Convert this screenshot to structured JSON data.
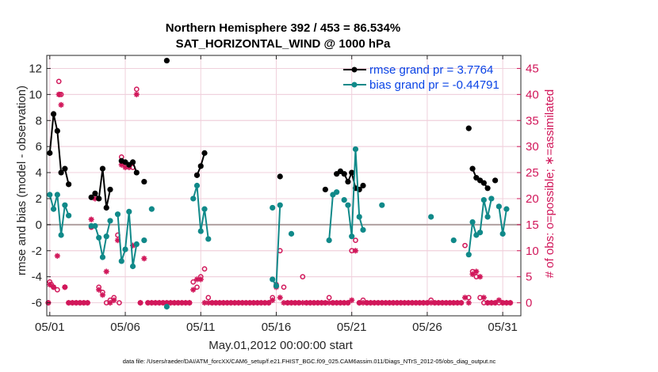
{
  "chart_data": {
    "type": "line",
    "title": "Northern Hemisphere 392 / 453 = 86.534%",
    "subtitle": "SAT_HORIZONTAL_WIND @ 1000 hPa",
    "xlabel": "May.01,2012 00:00:00 start",
    "ylabel": "rmse and bias (model - observation)",
    "y2label": "# of obs: o=possible; ∗=assimilated",
    "footnote": "data file: /Users/raeder/DAI/ATM_forcXX/CAM6_setup/f.e21.FHIST_BGC.f09_025.CAM6assim.011/Diags_NTrS_2012-05/obs_diag_output.nc",
    "xlim": [
      0.8,
      32.2
    ],
    "ylim": [
      -7,
      13
    ],
    "y2lim": [
      -2.5,
      47.5
    ],
    "x_ticks": [
      1,
      6,
      11,
      16,
      21,
      26,
      31
    ],
    "x_tick_labels": [
      "05/01",
      "05/06",
      "05/11",
      "05/16",
      "05/21",
      "05/26",
      "05/31"
    ],
    "y_ticks": [
      -6,
      -4,
      -2,
      0,
      2,
      4,
      6,
      8,
      10,
      12
    ],
    "y_tick_labels": [
      "-6",
      "-4",
      "-2",
      "0",
      "2",
      "4",
      "6",
      "8",
      "10",
      "12"
    ],
    "y2_ticks": [
      0,
      5,
      10,
      15,
      20,
      25,
      30,
      35,
      40,
      45
    ],
    "y2_tick_labels": [
      "0",
      "5",
      "10",
      "15",
      "20",
      "25",
      "30",
      "35",
      "40",
      "45"
    ],
    "grid": true,
    "legend_position": "top-right",
    "colors": {
      "rmse": "#000000",
      "bias": "#108989",
      "obs": "#d1175a",
      "zero_line": "#b0a0a0",
      "grid": "#f0d0dc"
    },
    "series": [
      {
        "name": "rmse grand pr = 3.7764",
        "marker": "filled-circle",
        "segments": [
          [
            [
              1.0,
              5.5
            ],
            [
              1.25,
              8.5
            ],
            [
              1.5,
              7.2
            ],
            [
              1.75,
              4.0
            ],
            [
              2.0,
              4.3
            ],
            [
              2.25,
              3.1
            ]
          ],
          [
            [
              3.75,
              2.1
            ],
            [
              4.0,
              2.4
            ],
            [
              4.25,
              2.0
            ],
            [
              4.5,
              4.3
            ],
            [
              4.75,
              1.3
            ],
            [
              5.0,
              2.7
            ]
          ],
          [
            [
              5.75,
              4.9
            ],
            [
              6.0,
              4.8
            ],
            [
              6.25,
              4.6
            ],
            [
              6.5,
              4.8
            ],
            [
              6.75,
              4.0
            ]
          ],
          [
            [
              7.25,
              3.3
            ]
          ],
          [
            [
              8.75,
              12.6
            ]
          ],
          [
            [
              10.75,
              3.8
            ],
            [
              11.0,
              4.5
            ],
            [
              11.25,
              5.5
            ]
          ],
          [
            [
              16.25,
              3.7
            ]
          ],
          [
            [
              20.0,
              3.9
            ],
            [
              20.25,
              4.1
            ],
            [
              20.5,
              3.9
            ],
            [
              20.75,
              3.3
            ],
            [
              21.0,
              4.0
            ],
            [
              21.25,
              2.8
            ],
            [
              21.5,
              2.7
            ],
            [
              21.75,
              3.0
            ]
          ],
          [
            [
              19.25,
              2.7
            ]
          ],
          [
            [
              28.75,
              7.4
            ]
          ],
          [
            [
              29.0,
              4.3
            ],
            [
              29.25,
              3.6
            ],
            [
              29.5,
              3.4
            ],
            [
              29.75,
              3.2
            ],
            [
              30.0,
              2.8
            ]
          ],
          [
            [
              30.5,
              3.4
            ]
          ]
        ]
      },
      {
        "name": "bias grand pr = -0.44791",
        "marker": "filled-circle",
        "segments": [
          [
            [
              1.0,
              2.3
            ],
            [
              1.25,
              1.2
            ],
            [
              1.5,
              2.3
            ],
            [
              1.75,
              -0.8
            ],
            [
              2.0,
              1.5
            ],
            [
              2.25,
              0.7
            ]
          ],
          [
            [
              3.75,
              -0.1
            ],
            [
              4.0,
              -0.1
            ],
            [
              4.25,
              -1.0
            ],
            [
              4.5,
              -2.5
            ],
            [
              4.75,
              -0.9
            ],
            [
              5.0,
              0.3
            ]
          ],
          [
            [
              5.5,
              0.8
            ],
            [
              5.75,
              -2.8
            ],
            [
              6.0,
              -1.9
            ],
            [
              6.25,
              1.0
            ],
            [
              6.5,
              -3.2
            ],
            [
              6.75,
              -1.5
            ]
          ],
          [
            [
              7.25,
              -1.2
            ]
          ],
          [
            [
              7.75,
              1.2
            ]
          ],
          [
            [
              8.75,
              -6.3
            ]
          ],
          [
            [
              10.5,
              2.0
            ],
            [
              10.75,
              3.0
            ],
            [
              11.0,
              -0.5
            ],
            [
              11.25,
              1.2
            ],
            [
              11.5,
              -1.1
            ]
          ],
          [
            [
              15.75,
              -4.2
            ],
            [
              16.0,
              -4.7
            ],
            [
              16.25,
              1.5
            ]
          ],
          [
            [
              15.75,
              1.3
            ]
          ],
          [
            [
              17.0,
              -0.7
            ]
          ],
          [
            [
              19.5,
              -1.2
            ],
            [
              19.75,
              2.3
            ],
            [
              20.0,
              2.5
            ]
          ],
          [
            [
              20.75,
              1.5
            ],
            [
              21.0,
              -0.9
            ],
            [
              21.25,
              5.8
            ],
            [
              21.5,
              0.6
            ],
            [
              21.75,
              -0.4
            ]
          ],
          [
            [
              20.5,
              1.9
            ]
          ],
          [
            [
              23.0,
              1.5
            ]
          ],
          [
            [
              26.25,
              0.6
            ]
          ],
          [
            [
              27.75,
              -1.2
            ]
          ],
          [
            [
              28.75,
              -2.3
            ],
            [
              29.0,
              0.2
            ],
            [
              29.25,
              -0.8
            ],
            [
              29.5,
              -0.6
            ],
            [
              29.75,
              1.9
            ],
            [
              30.0,
              0.6
            ],
            [
              30.25,
              2.0
            ]
          ],
          [
            [
              30.75,
              1.4
            ],
            [
              31.0,
              -0.7
            ],
            [
              31.25,
              1.2
            ]
          ]
        ]
      }
    ],
    "obs_possible": [
      [
        0.9,
        0
      ],
      [
        1.0,
        4.0
      ],
      [
        1.1,
        3.5
      ],
      [
        1.25,
        3.0
      ],
      [
        1.5,
        2.5
      ],
      [
        1.6,
        42.5
      ],
      [
        1.65,
        40.0
      ],
      [
        1.75,
        40.0
      ],
      [
        2.0,
        3.0
      ],
      [
        2.25,
        0
      ],
      [
        2.5,
        0
      ],
      [
        2.75,
        0
      ],
      [
        3.0,
        0
      ],
      [
        3.25,
        0
      ],
      [
        3.5,
        0
      ],
      [
        3.75,
        14.5
      ],
      [
        4.0,
        21.0
      ],
      [
        4.25,
        3.0
      ],
      [
        4.5,
        2.0
      ],
      [
        4.75,
        0
      ],
      [
        5.0,
        0.5
      ],
      [
        5.25,
        1.0
      ],
      [
        5.5,
        13.0
      ],
      [
        5.6,
        0
      ],
      [
        5.75,
        28.0
      ],
      [
        6.0,
        26.5
      ],
      [
        6.25,
        26.5
      ],
      [
        6.5,
        26.0
      ],
      [
        6.75,
        41.0
      ],
      [
        7.0,
        0
      ],
      [
        7.25,
        12.0
      ],
      [
        7.5,
        0
      ],
      [
        7.75,
        0
      ],
      [
        8.0,
        0
      ],
      [
        8.25,
        0
      ],
      [
        8.5,
        0
      ],
      [
        8.75,
        0
      ],
      [
        9.0,
        0
      ],
      [
        9.25,
        0
      ],
      [
        9.5,
        0
      ],
      [
        9.75,
        0
      ],
      [
        10.0,
        0
      ],
      [
        10.25,
        0
      ],
      [
        10.5,
        4.0
      ],
      [
        10.75,
        3.0
      ],
      [
        11.0,
        5.0
      ],
      [
        11.25,
        6.5
      ],
      [
        11.5,
        1.0
      ],
      [
        11.75,
        0
      ],
      [
        12.0,
        0
      ],
      [
        12.25,
        0
      ],
      [
        12.5,
        0
      ],
      [
        12.75,
        0
      ],
      [
        13.0,
        0
      ],
      [
        13.25,
        0
      ],
      [
        13.5,
        0
      ],
      [
        13.75,
        0
      ],
      [
        14.0,
        0
      ],
      [
        14.25,
        0
      ],
      [
        14.5,
        0
      ],
      [
        14.75,
        0
      ],
      [
        15.0,
        0
      ],
      [
        15.25,
        0
      ],
      [
        15.5,
        0
      ],
      [
        15.75,
        1.0
      ],
      [
        16.0,
        3.5
      ],
      [
        16.25,
        10.0
      ],
      [
        16.5,
        3.0
      ],
      [
        16.75,
        0
      ],
      [
        17.0,
        0
      ],
      [
        17.25,
        0
      ],
      [
        17.5,
        0
      ],
      [
        17.75,
        5.0
      ],
      [
        18.0,
        0
      ],
      [
        18.25,
        0
      ],
      [
        18.5,
        0
      ],
      [
        18.75,
        0
      ],
      [
        19.0,
        0
      ],
      [
        19.25,
        0
      ],
      [
        19.5,
        1.0
      ],
      [
        19.75,
        0
      ],
      [
        20.0,
        0
      ],
      [
        20.25,
        0
      ],
      [
        20.5,
        0
      ],
      [
        20.75,
        0
      ],
      [
        21.0,
        10.0
      ],
      [
        21.25,
        12.0
      ],
      [
        21.5,
        0
      ],
      [
        21.75,
        0.5
      ],
      [
        22.0,
        0
      ],
      [
        22.25,
        0
      ],
      [
        22.5,
        0
      ],
      [
        22.75,
        0
      ],
      [
        23.0,
        0
      ],
      [
        23.25,
        0
      ],
      [
        23.5,
        0
      ],
      [
        23.75,
        0
      ],
      [
        24.0,
        0
      ],
      [
        24.25,
        0
      ],
      [
        24.5,
        0
      ],
      [
        24.75,
        0
      ],
      [
        25.0,
        0
      ],
      [
        25.25,
        0
      ],
      [
        25.5,
        0
      ],
      [
        25.75,
        0
      ],
      [
        26.0,
        0
      ],
      [
        26.25,
        0.5
      ],
      [
        26.5,
        0
      ],
      [
        26.75,
        0
      ],
      [
        27.0,
        0
      ],
      [
        27.25,
        0
      ],
      [
        27.5,
        0
      ],
      [
        27.75,
        0
      ],
      [
        28.0,
        0
      ],
      [
        28.25,
        0
      ],
      [
        28.5,
        11.0
      ],
      [
        28.75,
        1.0
      ],
      [
        29.0,
        6.0
      ],
      [
        29.25,
        5.0
      ],
      [
        29.5,
        1.0
      ],
      [
        29.75,
        0
      ],
      [
        30.0,
        0
      ],
      [
        30.25,
        0
      ],
      [
        30.5,
        0
      ],
      [
        30.75,
        0
      ],
      [
        31.0,
        0
      ],
      [
        31.25,
        0
      ],
      [
        31.5,
        0
      ]
    ],
    "obs_assimilated": [
      [
        0.9,
        0
      ],
      [
        1.0,
        3.5
      ],
      [
        1.25,
        3.0
      ],
      [
        1.5,
        9.0
      ],
      [
        1.6,
        40.0
      ],
      [
        1.75,
        38.0
      ],
      [
        2.0,
        3.0
      ],
      [
        2.25,
        0
      ],
      [
        2.5,
        0
      ],
      [
        2.75,
        0
      ],
      [
        3.0,
        0
      ],
      [
        3.25,
        0
      ],
      [
        3.5,
        0
      ],
      [
        3.75,
        16.0
      ],
      [
        4.0,
        20.0
      ],
      [
        4.25,
        2.5
      ],
      [
        4.5,
        1.5
      ],
      [
        4.75,
        6.0
      ],
      [
        5.0,
        0
      ],
      [
        5.25,
        0.5
      ],
      [
        5.5,
        12.0
      ],
      [
        5.75,
        26.5
      ],
      [
        6.0,
        26.0
      ],
      [
        6.25,
        26.0
      ],
      [
        6.5,
        11.0
      ],
      [
        6.75,
        40.0
      ],
      [
        7.0,
        0
      ],
      [
        7.25,
        8.5
      ],
      [
        7.5,
        0
      ],
      [
        7.75,
        0
      ],
      [
        8.0,
        0
      ],
      [
        8.25,
        0
      ],
      [
        8.5,
        0
      ],
      [
        8.75,
        0
      ],
      [
        9.0,
        0
      ],
      [
        9.25,
        0
      ],
      [
        9.5,
        0
      ],
      [
        9.75,
        0
      ],
      [
        10.0,
        0
      ],
      [
        10.25,
        0
      ],
      [
        10.5,
        2.5
      ],
      [
        10.75,
        4.5
      ],
      [
        11.0,
        4.5
      ],
      [
        11.25,
        0
      ],
      [
        11.5,
        0
      ],
      [
        11.75,
        0
      ],
      [
        12.0,
        0
      ],
      [
        12.25,
        0
      ],
      [
        12.5,
        0
      ],
      [
        12.75,
        0
      ],
      [
        13.0,
        0
      ],
      [
        13.25,
        0
      ],
      [
        13.5,
        0
      ],
      [
        13.75,
        0
      ],
      [
        14.0,
        0
      ],
      [
        14.25,
        0
      ],
      [
        14.5,
        0
      ],
      [
        14.75,
        0
      ],
      [
        15.0,
        0
      ],
      [
        15.25,
        0
      ],
      [
        15.5,
        0
      ],
      [
        15.75,
        0.5
      ],
      [
        16.0,
        3.0
      ],
      [
        16.25,
        1.0
      ],
      [
        16.5,
        0
      ],
      [
        16.75,
        0
      ],
      [
        17.0,
        0
      ],
      [
        17.25,
        0
      ],
      [
        17.5,
        0
      ],
      [
        17.75,
        0
      ],
      [
        18.0,
        0
      ],
      [
        18.25,
        0
      ],
      [
        18.5,
        0
      ],
      [
        18.75,
        0
      ],
      [
        19.0,
        0
      ],
      [
        19.25,
        0
      ],
      [
        19.5,
        0
      ],
      [
        19.75,
        0
      ],
      [
        20.0,
        0
      ],
      [
        20.25,
        0
      ],
      [
        20.5,
        0
      ],
      [
        20.75,
        0
      ],
      [
        21.0,
        0.5
      ],
      [
        21.25,
        10.0
      ],
      [
        21.5,
        0
      ],
      [
        21.75,
        0
      ],
      [
        22.0,
        0
      ],
      [
        22.25,
        0
      ],
      [
        22.5,
        0
      ],
      [
        22.75,
        0
      ],
      [
        23.0,
        0
      ],
      [
        23.25,
        0
      ],
      [
        23.5,
        0
      ],
      [
        23.75,
        0
      ],
      [
        24.0,
        0
      ],
      [
        24.25,
        0
      ],
      [
        24.5,
        0
      ],
      [
        24.75,
        0
      ],
      [
        25.0,
        0
      ],
      [
        25.25,
        0
      ],
      [
        25.5,
        0
      ],
      [
        25.75,
        0
      ],
      [
        26.0,
        0
      ],
      [
        26.25,
        0
      ],
      [
        26.5,
        0
      ],
      [
        26.75,
        0
      ],
      [
        27.0,
        0
      ],
      [
        27.25,
        0
      ],
      [
        27.5,
        0
      ],
      [
        27.75,
        0
      ],
      [
        28.0,
        0
      ],
      [
        28.25,
        0
      ],
      [
        28.5,
        1.0
      ],
      [
        28.75,
        0
      ],
      [
        29.0,
        5.5
      ],
      [
        29.25,
        6.0
      ],
      [
        29.5,
        5.0
      ],
      [
        29.75,
        1.0
      ],
      [
        30.0,
        0
      ],
      [
        30.25,
        0
      ],
      [
        30.5,
        0
      ],
      [
        30.75,
        0.5
      ],
      [
        31.0,
        0
      ],
      [
        31.25,
        0
      ],
      [
        31.5,
        0
      ]
    ]
  }
}
